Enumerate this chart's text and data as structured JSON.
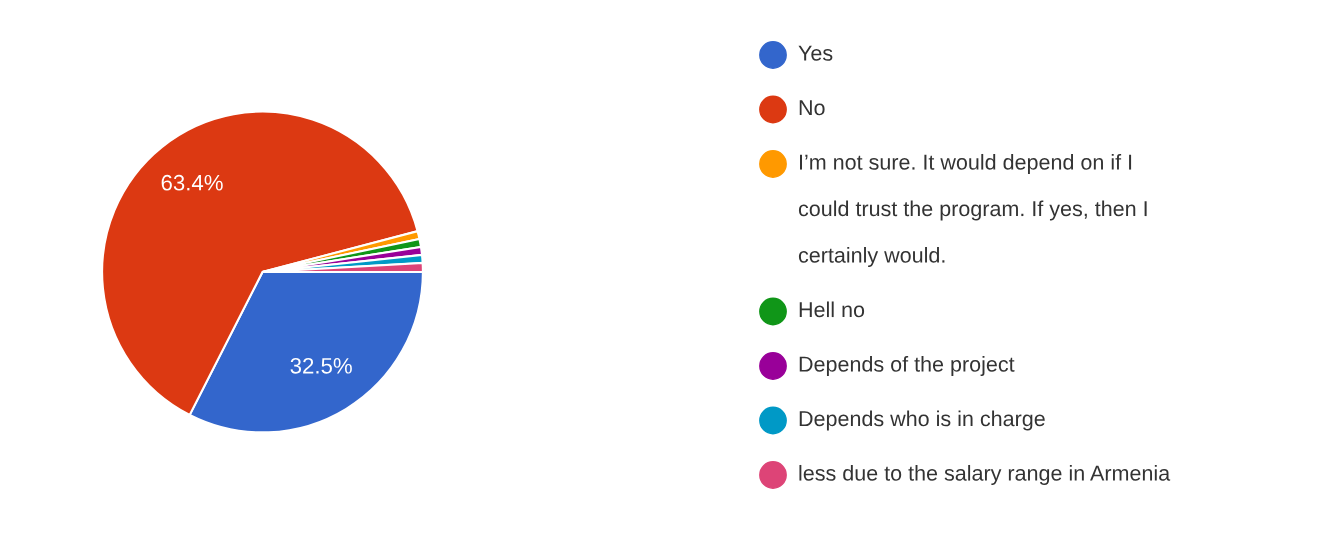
{
  "chart_data": {
    "type": "pie",
    "categories": [
      "Yes",
      "No",
      "I’m not sure. It would depend on if I could trust the program. If yes, then I certainly would.",
      "Hell no",
      "Depends of the project",
      "Depends who is in charge",
      "less due to the salary range in Armenia"
    ],
    "values": [
      32.5,
      63.4,
      0.8,
      0.8,
      0.8,
      0.8,
      0.9
    ],
    "value_labels": [
      "32.5%",
      "63.4%",
      null,
      null,
      null,
      null,
      null
    ],
    "colors": [
      "#3366cc",
      "#dc3912",
      "#ff9900",
      "#109618",
      "#990099",
      "#0099c6",
      "#dd4477"
    ],
    "legend": "right"
  }
}
